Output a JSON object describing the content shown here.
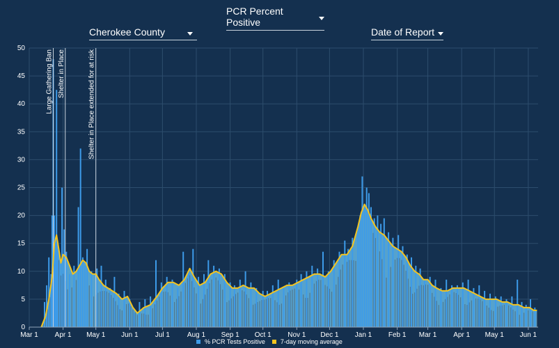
{
  "controls": {
    "metric_label": "PCR Percent Positive",
    "county_label": "Cherokee County",
    "date_label": "Date of Report"
  },
  "colors": {
    "background": "#14304f",
    "bars": "#3d9be9",
    "area": "#5aa9d4",
    "line": "#f4c41f",
    "grid": "#2d4d6d",
    "event_line": "#c9d4de"
  },
  "chart_data": {
    "type": "bar",
    "ylim": [
      0,
      50
    ],
    "yticks": [
      "0",
      "5",
      "10",
      "15",
      "20",
      "25",
      "30",
      "35",
      "40",
      "45",
      "50"
    ],
    "x_start": "2020-03-01",
    "x_end": "2021-06-10",
    "xticks": [
      {
        "date": "2020-03-01",
        "label": "Mar 1"
      },
      {
        "date": "2020-04-01",
        "label": "Apr 1"
      },
      {
        "date": "2020-05-01",
        "label": "May 1"
      },
      {
        "date": "2020-06-01",
        "label": "Jun 1"
      },
      {
        "date": "2020-07-01",
        "label": "Jul 1"
      },
      {
        "date": "2020-08-01",
        "label": "Aug 1"
      },
      {
        "date": "2020-09-01",
        "label": "Sep 1"
      },
      {
        "date": "2020-10-01",
        "label": "Oct 1"
      },
      {
        "date": "2020-11-01",
        "label": "Nov 1"
      },
      {
        "date": "2020-12-01",
        "label": "Dec 1"
      },
      {
        "date": "2021-01-01",
        "label": "Jan 1"
      },
      {
        "date": "2021-02-01",
        "label": "Feb 1"
      },
      {
        "date": "2021-03-01",
        "label": "Mar 1"
      },
      {
        "date": "2021-04-01",
        "label": "Apr 1"
      },
      {
        "date": "2021-05-01",
        "label": "May 1"
      },
      {
        "date": "2021-06-01",
        "label": "Jun 1"
      }
    ],
    "annotations": [
      {
        "date": "2020-03-23",
        "label": "Large Gathering Ban"
      },
      {
        "date": "2020-04-03",
        "label": "Shelter in Place"
      },
      {
        "date": "2020-05-01",
        "label": "Shelter in Place extended for at risk"
      }
    ],
    "series": [
      {
        "name": "% PCR Tests Positive",
        "points": [
          [
            "2020-03-15",
            4.5
          ],
          [
            "2020-03-17",
            7.5
          ],
          [
            "2020-03-19",
            12.5
          ],
          [
            "2020-03-21",
            9.5
          ],
          [
            "2020-03-22",
            20.0
          ],
          [
            "2020-03-23",
            48.0
          ],
          [
            "2020-03-24",
            20.0
          ],
          [
            "2020-03-25",
            16.0
          ],
          [
            "2020-03-26",
            42.5
          ],
          [
            "2020-03-27",
            14.0
          ],
          [
            "2020-03-29",
            12.0
          ],
          [
            "2020-03-31",
            25.0
          ],
          [
            "2020-04-02",
            17.5
          ],
          [
            "2020-04-04",
            13.5
          ],
          [
            "2020-04-07",
            9.5
          ],
          [
            "2020-04-11",
            11.0
          ],
          [
            "2020-04-15",
            21.5
          ],
          [
            "2020-04-17",
            32.0
          ],
          [
            "2020-04-19",
            12.5
          ],
          [
            "2020-04-21",
            11.0
          ],
          [
            "2020-04-23",
            14.0
          ],
          [
            "2020-04-27",
            10.0
          ],
          [
            "2020-05-02",
            10.5
          ],
          [
            "2020-05-06",
            11.0
          ],
          [
            "2020-05-10",
            8.5
          ],
          [
            "2020-05-14",
            7.0
          ],
          [
            "2020-05-18",
            9.0
          ],
          [
            "2020-05-22",
            6.0
          ],
          [
            "2020-05-27",
            6.5
          ],
          [
            "2020-06-01",
            5.0
          ],
          [
            "2020-06-05",
            2.5
          ],
          [
            "2020-06-10",
            4.5
          ],
          [
            "2020-06-15",
            5.0
          ],
          [
            "2020-06-20",
            5.5
          ],
          [
            "2020-06-25",
            12.0
          ],
          [
            "2020-06-30",
            8.0
          ],
          [
            "2020-07-05",
            9.0
          ],
          [
            "2020-07-10",
            8.5
          ],
          [
            "2020-07-15",
            7.0
          ],
          [
            "2020-07-20",
            13.5
          ],
          [
            "2020-07-25",
            10.0
          ],
          [
            "2020-07-29",
            14.0
          ],
          [
            "2020-08-03",
            9.0
          ],
          [
            "2020-08-08",
            9.5
          ],
          [
            "2020-08-12",
            12.0
          ],
          [
            "2020-08-17",
            11.0
          ],
          [
            "2020-08-22",
            10.5
          ],
          [
            "2020-08-27",
            9.5
          ],
          [
            "2020-09-01",
            8.0
          ],
          [
            "2020-09-05",
            7.5
          ],
          [
            "2020-09-10",
            8.5
          ],
          [
            "2020-09-15",
            10.0
          ],
          [
            "2020-09-20",
            8.0
          ],
          [
            "2020-09-25",
            7.0
          ],
          [
            "2020-10-01",
            6.5
          ],
          [
            "2020-10-05",
            6.5
          ],
          [
            "2020-10-10",
            7.5
          ],
          [
            "2020-10-15",
            8.5
          ],
          [
            "2020-10-20",
            7.0
          ],
          [
            "2020-10-25",
            8.0
          ],
          [
            "2020-11-01",
            8.5
          ],
          [
            "2020-11-05",
            9.5
          ],
          [
            "2020-11-10",
            10.0
          ],
          [
            "2020-11-15",
            11.0
          ],
          [
            "2020-11-20",
            10.5
          ],
          [
            "2020-11-25",
            13.5
          ],
          [
            "2020-11-30",
            10.0
          ],
          [
            "2020-12-05",
            12.0
          ],
          [
            "2020-12-10",
            13.5
          ],
          [
            "2020-12-15",
            15.5
          ],
          [
            "2020-12-18",
            14.0
          ],
          [
            "2020-12-22",
            16.0
          ],
          [
            "2020-12-27",
            18.0
          ],
          [
            "2020-12-29",
            20.0
          ],
          [
            "2020-12-31",
            27.0
          ],
          [
            "2021-01-02",
            22.0
          ],
          [
            "2021-01-04",
            25.0
          ],
          [
            "2021-01-06",
            24.0
          ],
          [
            "2021-01-08",
            21.5
          ],
          [
            "2021-01-11",
            19.5
          ],
          [
            "2021-01-14",
            20.0
          ],
          [
            "2021-01-17",
            18.5
          ],
          [
            "2021-01-20",
            19.5
          ],
          [
            "2021-01-24",
            17.0
          ],
          [
            "2021-01-28",
            16.0
          ],
          [
            "2021-02-02",
            16.5
          ],
          [
            "2021-02-06",
            14.5
          ],
          [
            "2021-02-10",
            13.0
          ],
          [
            "2021-02-14",
            12.5
          ],
          [
            "2021-02-18",
            11.0
          ],
          [
            "2021-02-22",
            10.5
          ],
          [
            "2021-02-26",
            8.5
          ],
          [
            "2021-03-03",
            9.0
          ],
          [
            "2021-03-08",
            8.5
          ],
          [
            "2021-03-13",
            7.0
          ],
          [
            "2021-03-18",
            8.5
          ],
          [
            "2021-03-23",
            7.5
          ],
          [
            "2021-03-28",
            7.5
          ],
          [
            "2021-04-02",
            8.0
          ],
          [
            "2021-04-07",
            8.5
          ],
          [
            "2021-04-12",
            7.0
          ],
          [
            "2021-04-17",
            7.5
          ],
          [
            "2021-04-22",
            6.5
          ],
          [
            "2021-04-27",
            6.0
          ],
          [
            "2021-05-02",
            5.5
          ],
          [
            "2021-05-07",
            5.5
          ],
          [
            "2021-05-12",
            5.0
          ],
          [
            "2021-05-17",
            5.5
          ],
          [
            "2021-05-22",
            8.5
          ],
          [
            "2021-05-26",
            4.5
          ],
          [
            "2021-05-30",
            4.0
          ],
          [
            "2021-06-03",
            5.0
          ],
          [
            "2021-06-07",
            3.5
          ]
        ]
      },
      {
        "name": "7-day moving average",
        "points": [
          [
            "2020-03-12",
            0.0
          ],
          [
            "2020-03-16",
            2.0
          ],
          [
            "2020-03-19",
            5.0
          ],
          [
            "2020-03-22",
            9.0
          ],
          [
            "2020-03-24",
            15.0
          ],
          [
            "2020-03-26",
            16.5
          ],
          [
            "2020-03-28",
            14.0
          ],
          [
            "2020-03-30",
            11.5
          ],
          [
            "2020-04-01",
            13.0
          ],
          [
            "2020-04-04",
            12.5
          ],
          [
            "2020-04-07",
            11.0
          ],
          [
            "2020-04-10",
            9.5
          ],
          [
            "2020-04-13",
            10.0
          ],
          [
            "2020-04-16",
            11.0
          ],
          [
            "2020-04-19",
            12.0
          ],
          [
            "2020-04-22",
            11.5
          ],
          [
            "2020-04-25",
            10.0
          ],
          [
            "2020-04-28",
            9.5
          ],
          [
            "2020-05-01",
            9.5
          ],
          [
            "2020-05-04",
            8.5
          ],
          [
            "2020-05-08",
            7.5
          ],
          [
            "2020-05-12",
            7.0
          ],
          [
            "2020-05-16",
            6.5
          ],
          [
            "2020-05-20",
            6.0
          ],
          [
            "2020-05-25",
            5.0
          ],
          [
            "2020-05-30",
            5.5
          ],
          [
            "2020-06-04",
            3.5
          ],
          [
            "2020-06-08",
            2.5
          ],
          [
            "2020-06-14",
            3.5
          ],
          [
            "2020-06-20",
            4.0
          ],
          [
            "2020-06-26",
            5.5
          ],
          [
            "2020-07-01",
            7.0
          ],
          [
            "2020-07-06",
            8.0
          ],
          [
            "2020-07-11",
            8.0
          ],
          [
            "2020-07-16",
            7.5
          ],
          [
            "2020-07-21",
            8.5
          ],
          [
            "2020-07-26",
            10.5
          ],
          [
            "2020-07-30",
            9.0
          ],
          [
            "2020-08-04",
            7.5
          ],
          [
            "2020-08-09",
            8.0
          ],
          [
            "2020-08-14",
            9.5
          ],
          [
            "2020-08-19",
            10.0
          ],
          [
            "2020-08-24",
            9.5
          ],
          [
            "2020-08-29",
            8.0
          ],
          [
            "2020-09-03",
            7.0
          ],
          [
            "2020-09-08",
            7.0
          ],
          [
            "2020-09-13",
            7.5
          ],
          [
            "2020-09-18",
            7.0
          ],
          [
            "2020-09-23",
            7.0
          ],
          [
            "2020-09-28",
            6.0
          ],
          [
            "2020-10-03",
            5.5
          ],
          [
            "2020-10-08",
            6.0
          ],
          [
            "2020-10-13",
            6.5
          ],
          [
            "2020-10-18",
            7.0
          ],
          [
            "2020-10-23",
            7.5
          ],
          [
            "2020-10-28",
            7.5
          ],
          [
            "2020-11-02",
            8.0
          ],
          [
            "2020-11-07",
            8.5
          ],
          [
            "2020-11-12",
            9.0
          ],
          [
            "2020-11-17",
            9.5
          ],
          [
            "2020-11-22",
            9.5
          ],
          [
            "2020-11-27",
            9.0
          ],
          [
            "2020-12-02",
            10.0
          ],
          [
            "2020-12-07",
            11.5
          ],
          [
            "2020-12-12",
            13.0
          ],
          [
            "2020-12-17",
            13.0
          ],
          [
            "2020-12-22",
            14.5
          ],
          [
            "2020-12-27",
            18.0
          ],
          [
            "2020-12-30",
            20.5
          ],
          [
            "2021-01-02",
            22.0
          ],
          [
            "2021-01-05",
            21.0
          ],
          [
            "2021-01-08",
            19.5
          ],
          [
            "2021-01-12",
            18.0
          ],
          [
            "2021-01-16",
            17.0
          ],
          [
            "2021-01-20",
            16.5
          ],
          [
            "2021-01-24",
            15.5
          ],
          [
            "2021-01-28",
            14.5
          ],
          [
            "2021-02-01",
            14.0
          ],
          [
            "2021-02-05",
            13.5
          ],
          [
            "2021-02-09",
            12.5
          ],
          [
            "2021-02-13",
            11.0
          ],
          [
            "2021-02-17",
            10.0
          ],
          [
            "2021-02-21",
            9.5
          ],
          [
            "2021-02-25",
            8.5
          ],
          [
            "2021-03-01",
            8.5
          ],
          [
            "2021-03-05",
            7.5
          ],
          [
            "2021-03-09",
            7.0
          ],
          [
            "2021-03-14",
            6.5
          ],
          [
            "2021-03-19",
            6.5
          ],
          [
            "2021-03-24",
            7.0
          ],
          [
            "2021-03-29",
            7.0
          ],
          [
            "2021-04-03",
            7.0
          ],
          [
            "2021-04-08",
            6.5
          ],
          [
            "2021-04-13",
            6.0
          ],
          [
            "2021-04-18",
            5.5
          ],
          [
            "2021-04-23",
            5.0
          ],
          [
            "2021-04-28",
            5.0
          ],
          [
            "2021-05-03",
            5.0
          ],
          [
            "2021-05-08",
            4.5
          ],
          [
            "2021-05-13",
            4.5
          ],
          [
            "2021-05-18",
            4.0
          ],
          [
            "2021-05-23",
            4.0
          ],
          [
            "2021-05-28",
            3.5
          ],
          [
            "2021-06-02",
            3.5
          ],
          [
            "2021-06-06",
            3.0
          ],
          [
            "2021-06-09",
            3.0
          ]
        ]
      }
    ]
  }
}
